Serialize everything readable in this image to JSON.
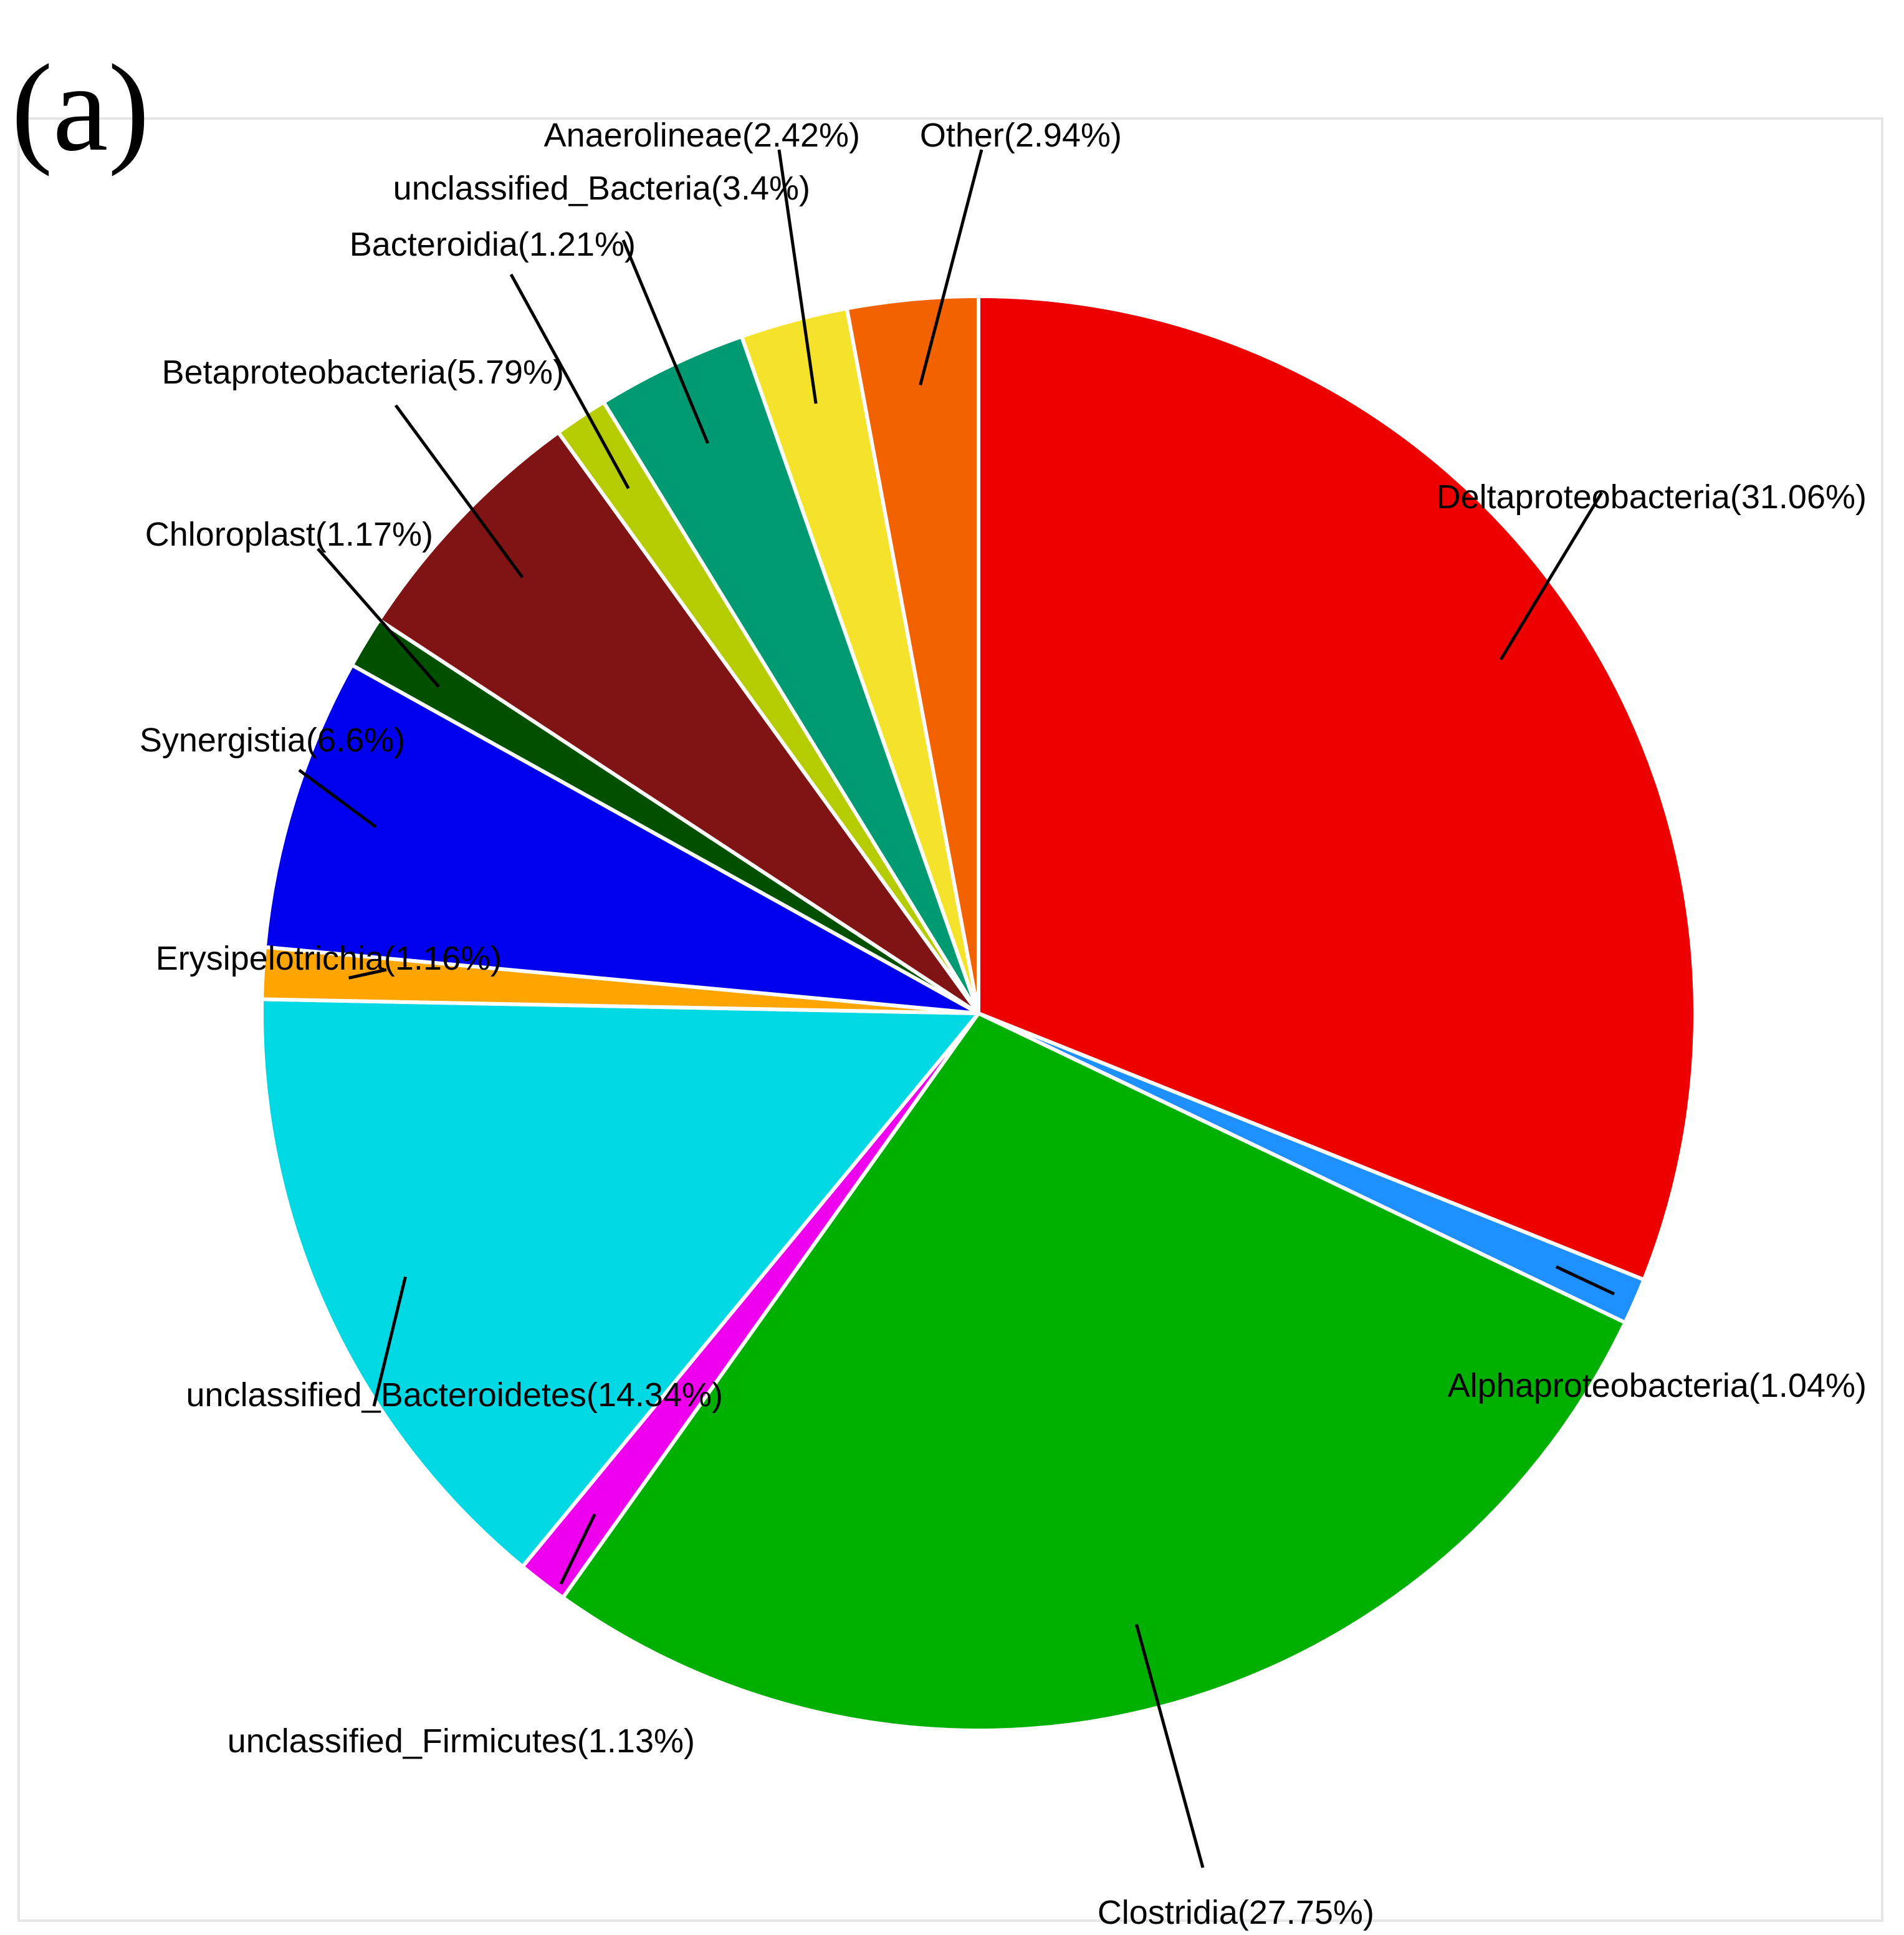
{
  "panel_label": "(a)",
  "chart_data": {
    "type": "pie",
    "slices": [
      {
        "label": "Deltaproteobacteria(31.06%)",
        "name": "Deltaproteobacteria",
        "value": 31.06,
        "color": "#EE0000"
      },
      {
        "label": "Alphaproteobacteria(1.04%)",
        "name": "Alphaproteobacteria",
        "value": 1.04,
        "color": "#1E90FF"
      },
      {
        "label": "Clostridia(27.75%)",
        "name": "Clostridia",
        "value": 27.75,
        "color": "#00B000"
      },
      {
        "label": "unclassified_Firmicutes(1.13%)",
        "name": "unclassified_Firmicutes",
        "value": 1.13,
        "color": "#EE00EE"
      },
      {
        "label": "unclassified_Bacteroidetes(14.34%)",
        "name": "unclassified_Bacteroidetes",
        "value": 14.34,
        "color": "#00D8E4"
      },
      {
        "label": "Erysipelotrichia(1.16%)",
        "name": "Erysipelotrichia",
        "value": 1.16,
        "color": "#FFA500"
      },
      {
        "label": "Synergistia(6.6%)",
        "name": "Synergistia",
        "value": 6.6,
        "color": "#0000EE"
      },
      {
        "label": "Chloroplast(1.17%)",
        "name": "Chloroplast",
        "value": 1.17,
        "color": "#005000"
      },
      {
        "label": "Betaproteobacteria(5.79%)",
        "name": "Betaproteobacteria",
        "value": 5.79,
        "color": "#801414"
      },
      {
        "label": "Bacteroidia(1.21%)",
        "name": "Bacteroidia",
        "value": 1.21,
        "color": "#B4CC00"
      },
      {
        "label": "unclassified_Bacteria(3.4%)",
        "name": "unclassified_Bacteria",
        "value": 3.4,
        "color": "#009A72"
      },
      {
        "label": "Anaerolineae(2.42%)",
        "name": "Anaerolineae",
        "value": 2.42,
        "color": "#F5E22A"
      },
      {
        "label": "Other(2.94%)",
        "name": "Other",
        "value": 2.94,
        "color": "#F26200"
      }
    ],
    "start": "12 o'clock",
    "direction": "clockwise"
  }
}
